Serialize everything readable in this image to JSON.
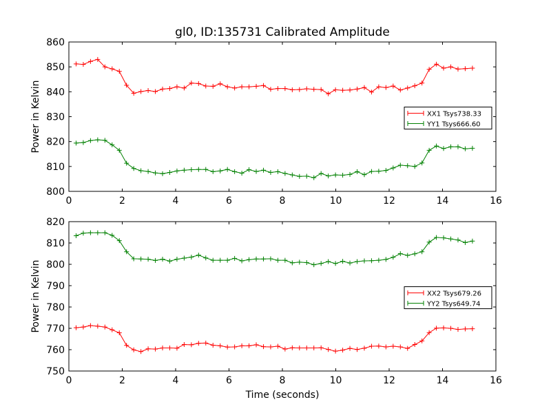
{
  "title": "gl0, ID:135731 Calibrated Amplitude",
  "xlabel": "Time (seconds)",
  "colors": {
    "red": "#ff0000",
    "green": "#008000",
    "axis": "#000000",
    "background": "#ffffff"
  },
  "chart_data": [
    {
      "type": "line",
      "ylabel": "Power in Kelvin",
      "xlim": [
        0,
        16
      ],
      "ylim": [
        800,
        860
      ],
      "xticks": [
        0,
        2,
        4,
        6,
        8,
        10,
        12,
        14,
        16
      ],
      "yticks": [
        800,
        810,
        820,
        830,
        840,
        850,
        860
      ],
      "legend_position": "center-right",
      "grid": false,
      "series": [
        {
          "name": "XX1 Tsys738.33",
          "color": "#ff0000",
          "x": [
            0.27,
            0.54,
            0.81,
            1.08,
            1.35,
            1.62,
            1.89,
            2.16,
            2.43,
            2.7,
            2.97,
            3.24,
            3.51,
            3.78,
            4.05,
            4.32,
            4.59,
            4.86,
            5.13,
            5.4,
            5.67,
            5.94,
            6.21,
            6.48,
            6.75,
            7.02,
            7.29,
            7.56,
            7.83,
            8.1,
            8.37,
            8.64,
            8.91,
            9.18,
            9.45,
            9.72,
            9.99,
            10.26,
            10.53,
            10.8,
            11.07,
            11.34,
            11.61,
            11.88,
            12.15,
            12.42,
            12.69,
            12.96,
            13.23,
            13.5,
            13.77,
            14.04,
            14.31,
            14.58,
            14.85,
            15.12
          ],
          "y": [
            851.2,
            851.0,
            852.2,
            853.0,
            850.0,
            849.2,
            848.2,
            842.6,
            839.4,
            840.1,
            840.5,
            840.1,
            841.1,
            841.3,
            842.0,
            841.5,
            843.5,
            843.3,
            842.3,
            842.2,
            843.2,
            842.0,
            841.5,
            842.0,
            842.0,
            842.2,
            842.5,
            841.0,
            841.3,
            841.3,
            840.8,
            840.9,
            841.2,
            841.0,
            840.9,
            839.2,
            840.8,
            840.6,
            840.7,
            841.1,
            841.7,
            839.9,
            842.0,
            841.7,
            842.3,
            840.7,
            841.5,
            842.4,
            843.5,
            849.0,
            851.1,
            849.5,
            850.0,
            849.1,
            849.3,
            849.5
          ]
        },
        {
          "name": "YY1 Tsys666.60",
          "color": "#008000",
          "x": [
            0.27,
            0.54,
            0.81,
            1.08,
            1.35,
            1.62,
            1.89,
            2.16,
            2.43,
            2.7,
            2.97,
            3.24,
            3.51,
            3.78,
            4.05,
            4.32,
            4.59,
            4.86,
            5.13,
            5.4,
            5.67,
            5.94,
            6.21,
            6.48,
            6.75,
            7.02,
            7.29,
            7.56,
            7.83,
            8.1,
            8.37,
            8.64,
            8.91,
            9.18,
            9.45,
            9.72,
            9.99,
            10.26,
            10.53,
            10.8,
            11.07,
            11.34,
            11.61,
            11.88,
            12.15,
            12.42,
            12.69,
            12.96,
            13.23,
            13.5,
            13.77,
            14.04,
            14.31,
            14.58,
            14.85,
            15.12
          ],
          "y": [
            819.4,
            819.6,
            820.4,
            820.7,
            820.5,
            818.7,
            816.5,
            811.3,
            809.2,
            808.3,
            808.0,
            807.4,
            807.1,
            807.6,
            808.2,
            808.5,
            808.7,
            808.8,
            808.8,
            807.9,
            808.2,
            808.8,
            807.9,
            807.3,
            808.7,
            808.0,
            808.5,
            807.6,
            807.9,
            807.2,
            806.6,
            806.0,
            806.1,
            805.5,
            807.2,
            806.2,
            806.6,
            806.5,
            806.8,
            807.9,
            806.7,
            808.0,
            808.1,
            808.4,
            809.4,
            810.5,
            810.3,
            810.0,
            811.4,
            816.5,
            818.2,
            817.2,
            817.9,
            817.9,
            817.1,
            817.3
          ]
        }
      ]
    },
    {
      "type": "line",
      "ylabel": "Power in Kelvin",
      "xlim": [
        0,
        16
      ],
      "ylim": [
        750,
        820
      ],
      "xticks": [
        0,
        2,
        4,
        6,
        8,
        10,
        12,
        14,
        16
      ],
      "yticks": [
        750,
        760,
        770,
        780,
        790,
        800,
        810,
        820
      ],
      "legend_position": "center-right",
      "grid": false,
      "series": [
        {
          "name": "XX2 Tsys679.26",
          "color": "#ff0000",
          "x": [
            0.27,
            0.54,
            0.81,
            1.08,
            1.35,
            1.62,
            1.89,
            2.16,
            2.43,
            2.7,
            2.97,
            3.24,
            3.51,
            3.78,
            4.05,
            4.32,
            4.59,
            4.86,
            5.13,
            5.4,
            5.67,
            5.94,
            6.21,
            6.48,
            6.75,
            7.02,
            7.29,
            7.56,
            7.83,
            8.1,
            8.37,
            8.64,
            8.91,
            9.18,
            9.45,
            9.72,
            9.99,
            10.26,
            10.53,
            10.8,
            11.07,
            11.34,
            11.61,
            11.88,
            12.15,
            12.42,
            12.69,
            12.96,
            13.23,
            13.5,
            13.77,
            14.04,
            14.31,
            14.58,
            14.85,
            15.12
          ],
          "y": [
            770.3,
            770.6,
            771.3,
            771.0,
            770.6,
            769.3,
            767.9,
            762.0,
            759.9,
            759.1,
            760.4,
            760.3,
            760.8,
            760.8,
            760.7,
            762.4,
            762.3,
            763.0,
            763.1,
            762.1,
            761.8,
            761.2,
            761.3,
            761.8,
            761.8,
            762.3,
            761.4,
            761.3,
            761.6,
            760.3,
            760.9,
            760.8,
            760.8,
            760.8,
            760.9,
            760.1,
            759.3,
            759.8,
            760.6,
            760.1,
            760.7,
            761.6,
            761.7,
            761.3,
            761.6,
            761.3,
            760.6,
            762.4,
            764.1,
            768.0,
            770.1,
            770.2,
            770.0,
            769.5,
            769.7,
            769.8
          ]
        },
        {
          "name": "YY2 Tsys649.74",
          "color": "#008000",
          "x": [
            0.27,
            0.54,
            0.81,
            1.08,
            1.35,
            1.62,
            1.89,
            2.16,
            2.43,
            2.7,
            2.97,
            3.24,
            3.51,
            3.78,
            4.05,
            4.32,
            4.59,
            4.86,
            5.13,
            5.4,
            5.67,
            5.94,
            6.21,
            6.48,
            6.75,
            7.02,
            7.29,
            7.56,
            7.83,
            8.1,
            8.37,
            8.64,
            8.91,
            9.18,
            9.45,
            9.72,
            9.99,
            10.26,
            10.53,
            10.8,
            11.07,
            11.34,
            11.61,
            11.88,
            12.15,
            12.42,
            12.69,
            12.96,
            13.23,
            13.5,
            13.77,
            14.04,
            14.31,
            14.58,
            14.85,
            15.12
          ],
          "y": [
            813.4,
            814.6,
            814.8,
            814.8,
            814.8,
            813.6,
            811.1,
            805.9,
            802.6,
            802.5,
            802.4,
            801.8,
            802.4,
            801.5,
            802.4,
            802.9,
            803.4,
            804.3,
            803.0,
            801.9,
            801.9,
            801.9,
            802.8,
            801.6,
            802.2,
            802.5,
            802.5,
            802.6,
            801.9,
            801.9,
            800.7,
            801.0,
            800.8,
            799.8,
            800.4,
            801.3,
            800.4,
            801.4,
            800.6,
            801.3,
            801.6,
            801.7,
            801.9,
            802.3,
            803.3,
            805.0,
            804.2,
            804.9,
            805.9,
            810.4,
            812.6,
            812.4,
            811.9,
            811.4,
            810.2,
            810.9
          ]
        }
      ]
    }
  ]
}
